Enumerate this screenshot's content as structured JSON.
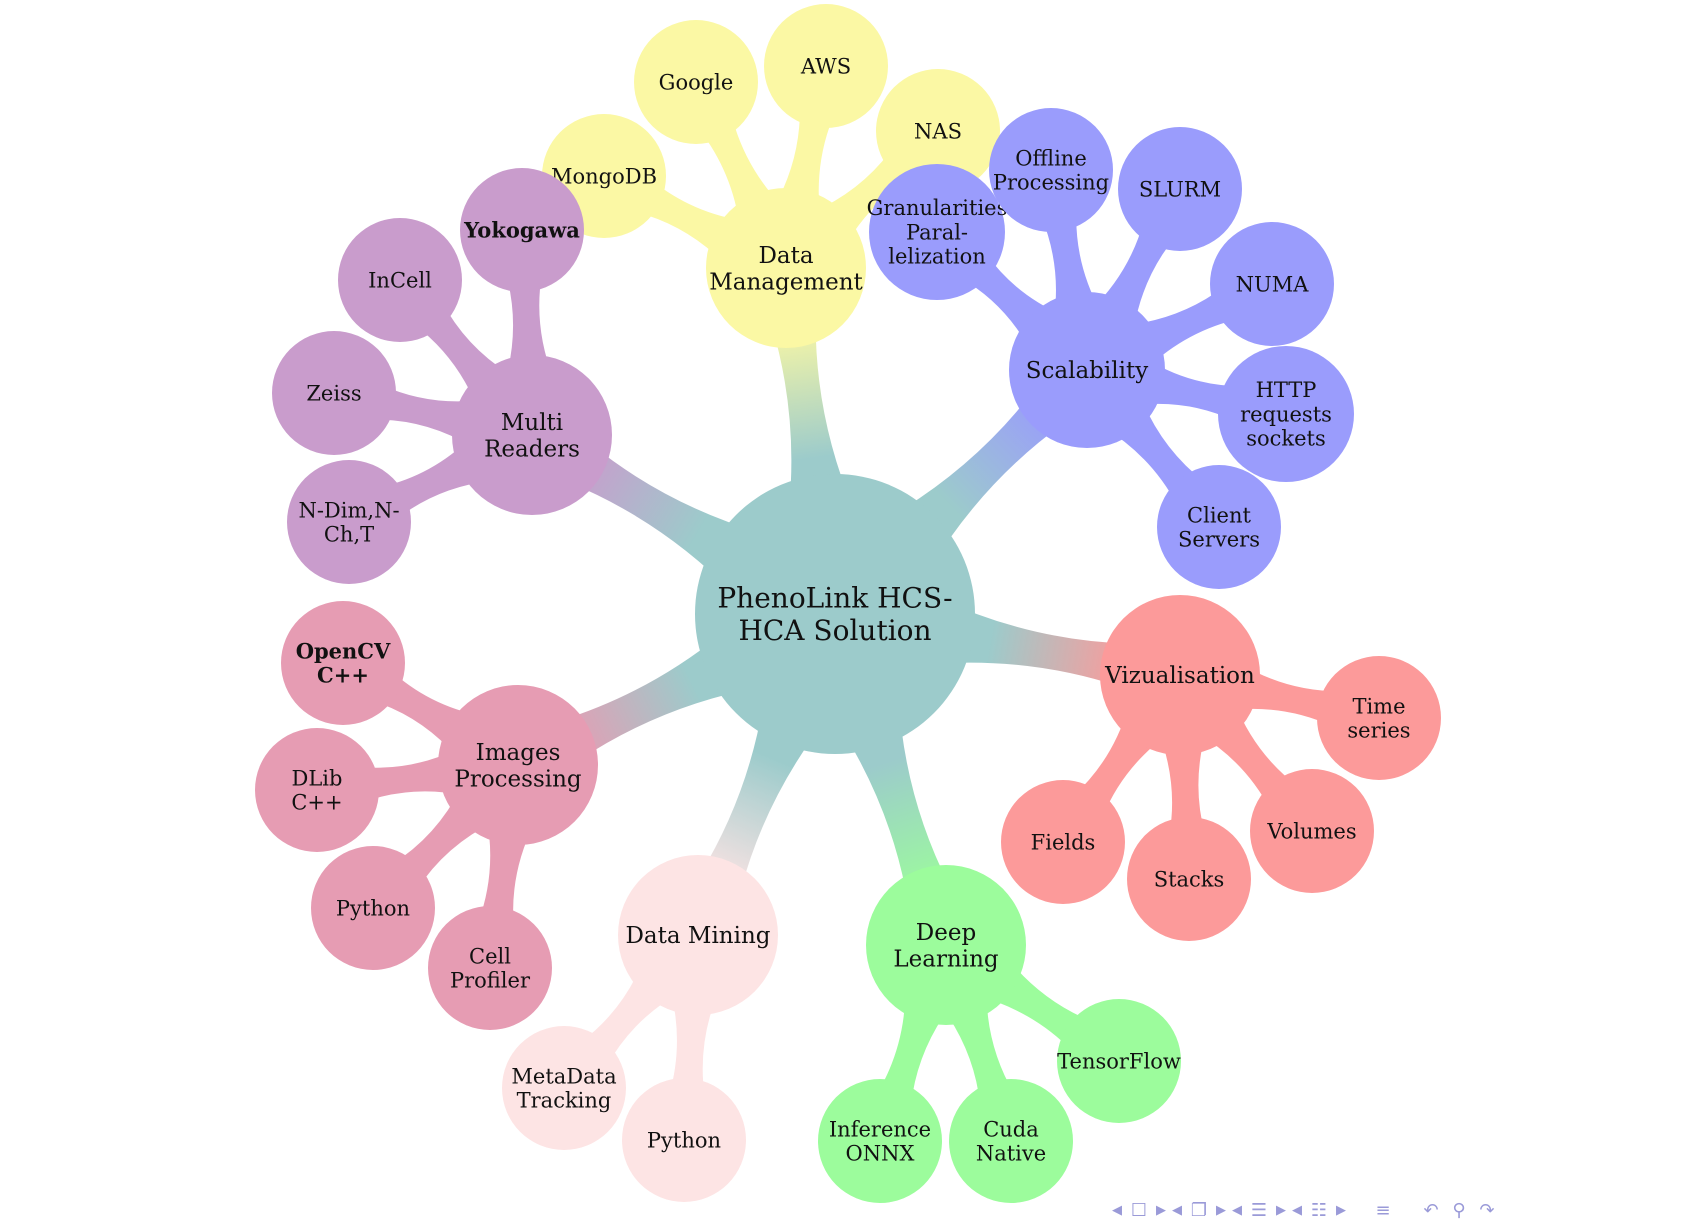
{
  "mindmap": {
    "root": {
      "label": [
        "PhenoLink HCS-",
        "HCA Solution"
      ],
      "color": "#9ccbcb"
    },
    "branches": [
      {
        "id": "data-management",
        "label": [
          "Data",
          "Management"
        ],
        "color": "#fbf8a4",
        "children": [
          {
            "id": "mongodb",
            "label": [
              "MongoDB"
            ]
          },
          {
            "id": "google",
            "label": [
              "Google"
            ]
          },
          {
            "id": "aws",
            "label": [
              "AWS"
            ]
          },
          {
            "id": "nas",
            "label": [
              "NAS"
            ]
          }
        ]
      },
      {
        "id": "scalability",
        "label": [
          "Scalability"
        ],
        "color": "#9a9cfc",
        "children": [
          {
            "id": "granularities",
            "label": [
              "Granularities",
              "Paral-",
              "lelization"
            ]
          },
          {
            "id": "offline-processing",
            "label": [
              "Offline",
              "Processing"
            ]
          },
          {
            "id": "slurm",
            "label": [
              "SLURM"
            ]
          },
          {
            "id": "numa",
            "label": [
              "NUMA"
            ]
          },
          {
            "id": "http-requests",
            "label": [
              "HTTP",
              "requests",
              "sockets"
            ]
          },
          {
            "id": "client-servers",
            "label": [
              "Client",
              "Servers"
            ]
          }
        ]
      },
      {
        "id": "vizualisation",
        "label": [
          "Vizualisation"
        ],
        "color": "#fc9a9a",
        "children": [
          {
            "id": "time-series",
            "label": [
              "Time",
              "series"
            ]
          },
          {
            "id": "volumes",
            "label": [
              "Volumes"
            ]
          },
          {
            "id": "stacks",
            "label": [
              "Stacks"
            ]
          },
          {
            "id": "fields",
            "label": [
              "Fields"
            ]
          }
        ]
      },
      {
        "id": "deep-learning",
        "label": [
          "Deep",
          "Learning"
        ],
        "color": "#9cfc9c",
        "children": [
          {
            "id": "tensorflow",
            "label": [
              "TensorFlow"
            ]
          },
          {
            "id": "cuda-native",
            "label": [
              "Cuda",
              "Native"
            ]
          },
          {
            "id": "inference-onnx",
            "label": [
              "Inference",
              "ONNX"
            ]
          }
        ]
      },
      {
        "id": "data-mining",
        "label": [
          "Data Mining"
        ],
        "color": "#fde4e4",
        "children": [
          {
            "id": "python-dm",
            "label": [
              "Python"
            ]
          },
          {
            "id": "metadata-tracking",
            "label": [
              "MetaData",
              "Tracking"
            ]
          }
        ]
      },
      {
        "id": "images-processing",
        "label": [
          "Images",
          "Processing"
        ],
        "color": "#e69cb3",
        "children": [
          {
            "id": "cell-profiler",
            "label": [
              "Cell",
              "Profiler"
            ]
          },
          {
            "id": "python-ip",
            "label": [
              "Python"
            ]
          },
          {
            "id": "dlib",
            "label": [
              "DLib",
              "C++"
            ]
          },
          {
            "id": "opencv",
            "label": [
              "OpenCV",
              "C++"
            ],
            "bold": true
          }
        ]
      },
      {
        "id": "multi-readers",
        "label": [
          "Multi",
          "Readers"
        ],
        "color": "#c99ccc",
        "children": [
          {
            "id": "ndim",
            "label": [
              "N-Dim,N-",
              "Ch,T"
            ]
          },
          {
            "id": "zeiss",
            "label": [
              "Zeiss"
            ]
          },
          {
            "id": "incell",
            "label": [
              "InCell"
            ]
          },
          {
            "id": "yokogawa",
            "label": [
              "Yokogawa"
            ],
            "bold": true
          }
        ]
      }
    ]
  },
  "navigation": {
    "icons": [
      "nav-left-arrow",
      "frame-icon",
      "nav-right-arrow",
      "nav-left-arrow",
      "subsection-icon",
      "nav-right-arrow",
      "nav-left-arrow",
      "section-icon",
      "nav-right-arrow",
      "nav-left-arrow",
      "slide-icon",
      "nav-right-arrow",
      "outline-icon",
      "back-icon",
      "search-icon",
      "forward-icon"
    ]
  }
}
